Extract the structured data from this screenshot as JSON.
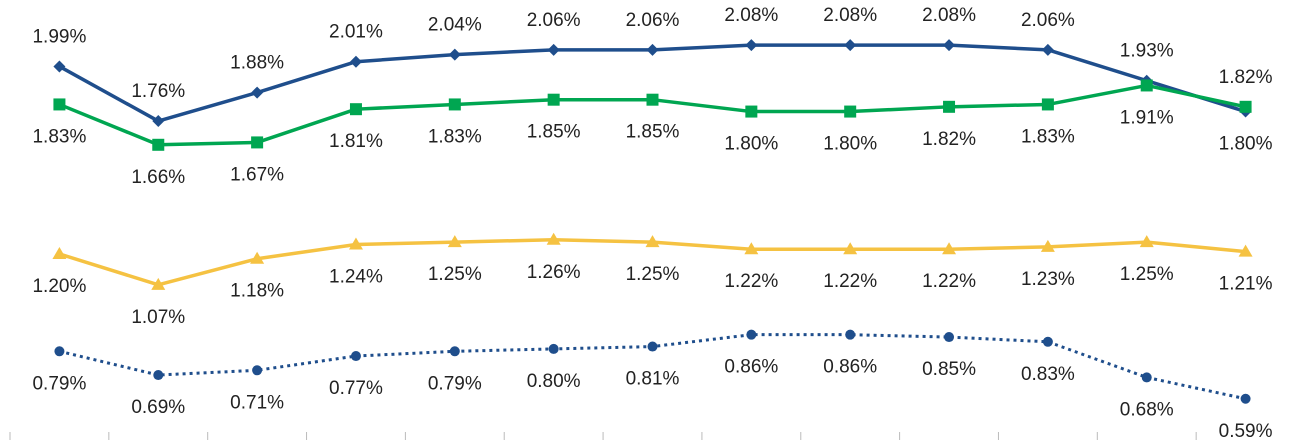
{
  "chart_data": {
    "type": "line",
    "categories": [
      null,
      null,
      null,
      null,
      null,
      null,
      null,
      null,
      null,
      null,
      null,
      null,
      null
    ],
    "ylim": [
      0.45,
      2.27
    ],
    "series": [
      {
        "color": "#1f4e8c",
        "marker": "diamond",
        "dash": false,
        "values": [
          1.99,
          1.76,
          1.88,
          2.01,
          2.04,
          2.06,
          2.06,
          2.08,
          2.08,
          2.08,
          2.06,
          1.93,
          1.8
        ],
        "value_labels": [
          "1.99%",
          "1.76%",
          "1.88%",
          "2.01%",
          "2.04%",
          "2.06%",
          "2.06%",
          "2.08%",
          "2.08%",
          "2.08%",
          "2.06%",
          "1.93%",
          "1.80%"
        ]
      },
      {
        "color": "#00a651",
        "marker": "square",
        "dash": false,
        "values": [
          1.83,
          1.66,
          1.67,
          1.81,
          1.83,
          1.85,
          1.85,
          1.8,
          1.8,
          1.82,
          1.83,
          1.91,
          1.82
        ],
        "value_labels": [
          "1.83%",
          "1.66%",
          "1.67%",
          "1.81%",
          "1.83%",
          "1.85%",
          "1.85%",
          "1.80%",
          "1.80%",
          "1.82%",
          "1.83%",
          "1.91%",
          "1.82%"
        ]
      },
      {
        "color": "#f5c242",
        "marker": "triangle",
        "dash": false,
        "values": [
          1.2,
          1.07,
          1.18,
          1.24,
          1.25,
          1.26,
          1.25,
          1.22,
          1.22,
          1.22,
          1.23,
          1.25,
          1.21
        ],
        "value_labels": [
          "1.20%",
          "1.07%",
          "1.18%",
          "1.24%",
          "1.25%",
          "1.26%",
          "1.25%",
          "1.22%",
          "1.22%",
          "1.22%",
          "1.23%",
          "1.25%",
          "1.21%"
        ]
      },
      {
        "color": "#1f4e8c",
        "marker": "circle",
        "dash": true,
        "values": [
          0.79,
          0.69,
          0.71,
          0.77,
          0.79,
          0.8,
          0.81,
          0.86,
          0.86,
          0.85,
          0.83,
          0.68,
          0.59
        ],
        "value_labels": [
          "0.79%",
          "0.69%",
          "0.71%",
          "0.77%",
          "0.79%",
          "0.80%",
          "0.81%",
          "0.86%",
          "0.86%",
          "0.85%",
          "0.83%",
          "0.68%",
          "0.59%"
        ]
      }
    ]
  }
}
